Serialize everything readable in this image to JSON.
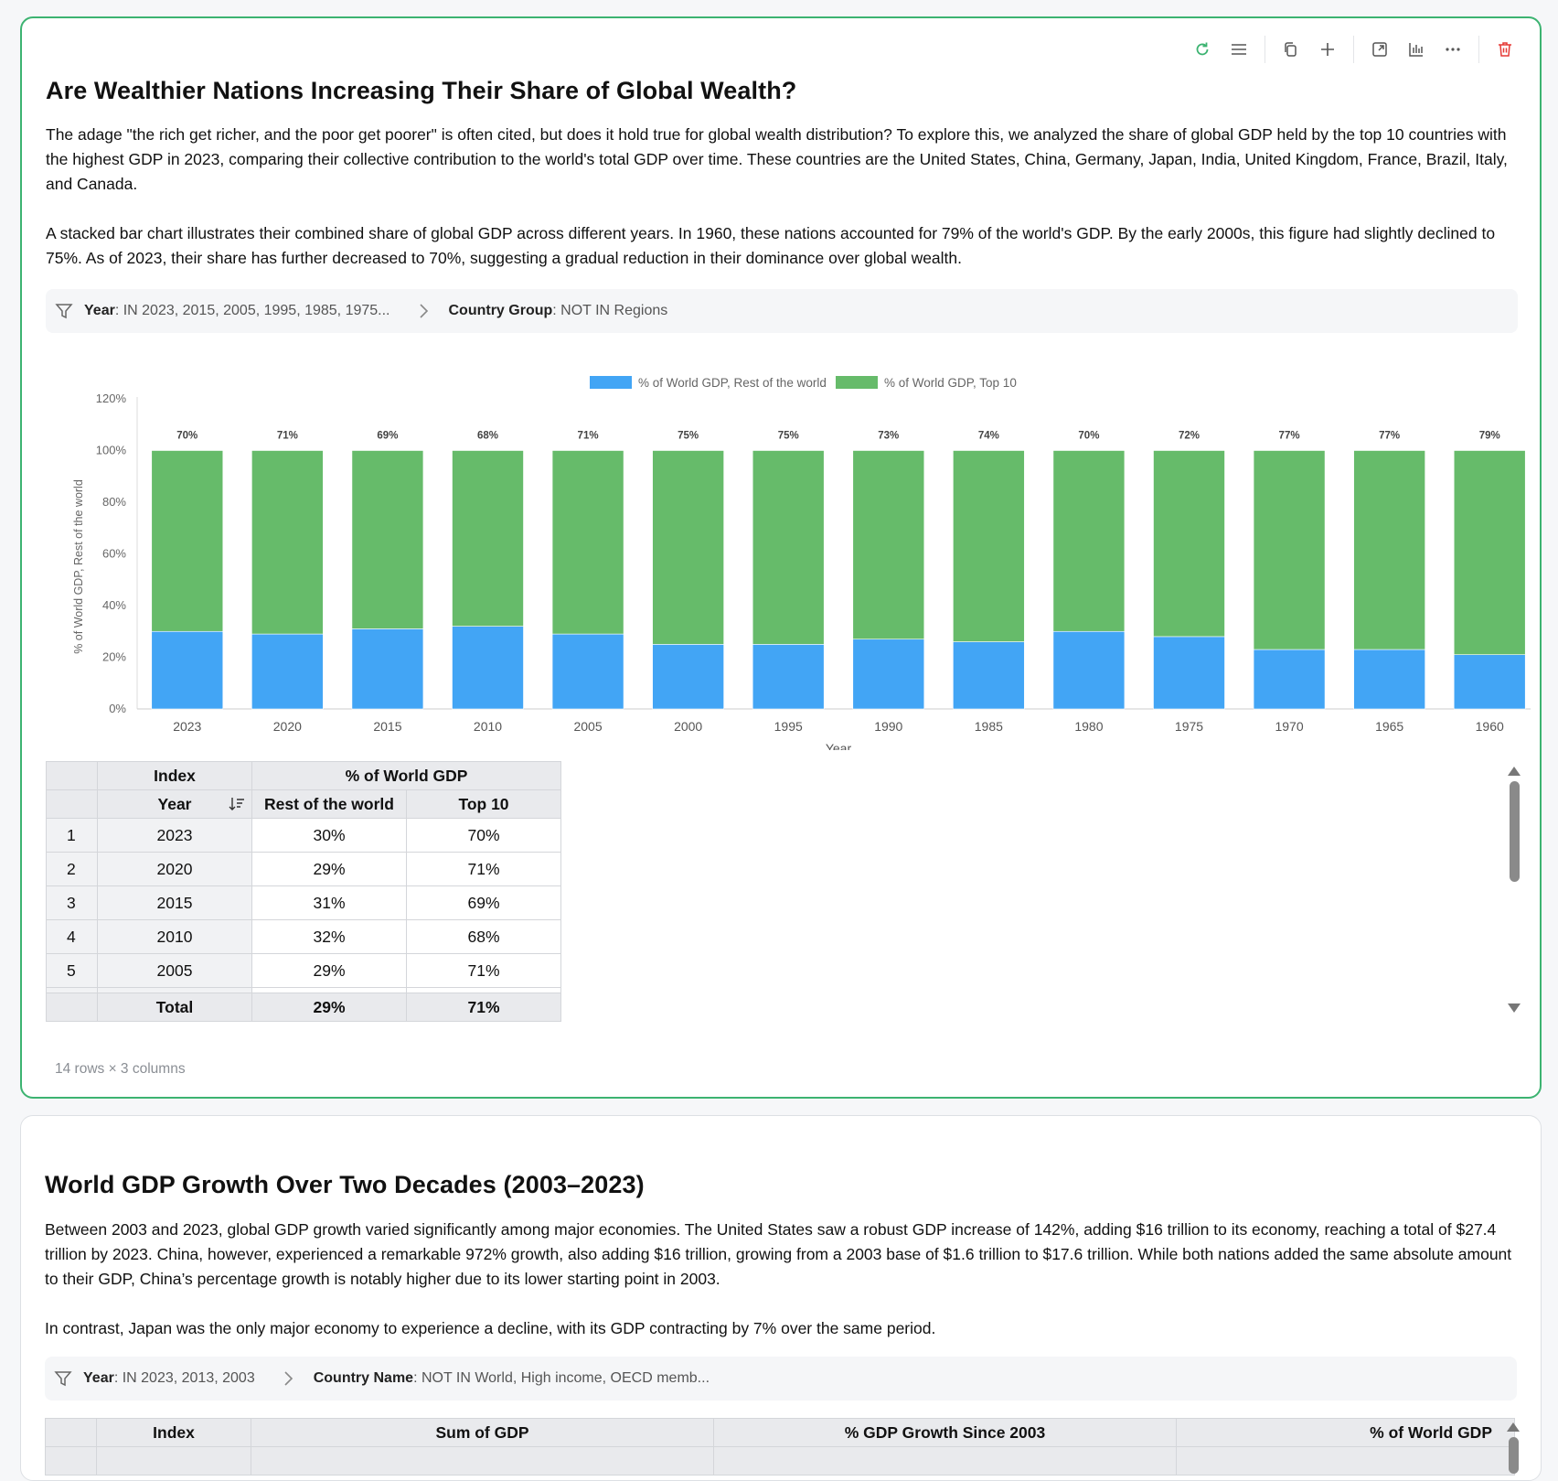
{
  "card1": {
    "title": "Are Wealthier Nations Increasing Their Share of Global Wealth?",
    "para1": "The adage \"the rich get richer, and the poor get poorer\" is often cited, but does it hold true for global wealth distribution? To explore this, we analyzed the share of global GDP held by the top 10 countries with the highest GDP in 2023, comparing their collective contribution to the world's total GDP over time. These countries are the United States, China, Germany, Japan, India, United Kingdom, France, Brazil, Italy, and Canada.",
    "para2": "A stacked bar chart illustrates their combined share of global GDP across different years. In 1960, these nations accounted for 79% of the world's GDP. By the early 2000s, this figure had slightly declined to 75%. As of 2023, their share has further decreased to 70%, suggesting a gradual reduction in their dominance over global wealth.",
    "filters": [
      {
        "key": "Year",
        "value": ": IN 2023, 2015, 2005, 1995, 1985, 1975..."
      },
      {
        "key": "Country Group",
        "value": ": NOT IN Regions"
      }
    ],
    "table": {
      "header_index": "Index",
      "header_group": "% of World GDP",
      "col_year": "Year",
      "col_rest": "Rest of the world",
      "col_top": "Top 10",
      "rows": [
        {
          "n": "1",
          "year": "2023",
          "rest": "30%",
          "top": "70%"
        },
        {
          "n": "2",
          "year": "2020",
          "rest": "29%",
          "top": "71%"
        },
        {
          "n": "3",
          "year": "2015",
          "rest": "31%",
          "top": "69%"
        },
        {
          "n": "4",
          "year": "2010",
          "rest": "32%",
          "top": "68%"
        },
        {
          "n": "5",
          "year": "2005",
          "rest": "29%",
          "top": "71%"
        }
      ],
      "total": {
        "label": "Total",
        "rest": "29%",
        "top": "71%"
      }
    },
    "row_count": "14 rows × 3 columns"
  },
  "chart_data": {
    "type": "bar",
    "stacked": true,
    "categories": [
      "2023",
      "2020",
      "2015",
      "2010",
      "2005",
      "2000",
      "1995",
      "1990",
      "1985",
      "1980",
      "1975",
      "1970",
      "1965",
      "1960"
    ],
    "series": [
      {
        "name": "% of World GDP, Rest of the world",
        "color": "#42a5f5",
        "values": [
          30,
          29,
          31,
          32,
          29,
          25,
          25,
          27,
          26,
          30,
          28,
          23,
          23,
          21
        ],
        "labels": [
          "30%",
          "29%",
          "31%",
          "32%",
          "29%",
          "25%",
          "25%",
          "27%",
          "26%",
          "30%",
          "28%",
          "23%",
          "23%",
          "21%"
        ]
      },
      {
        "name": "% of World GDP, Top 10",
        "color": "#66bb6a",
        "values": [
          70,
          71,
          69,
          68,
          71,
          75,
          75,
          73,
          74,
          70,
          72,
          77,
          77,
          79
        ],
        "labels": [
          "70%",
          "71%",
          "69%",
          "68%",
          "71%",
          "75%",
          "75%",
          "73%",
          "74%",
          "70%",
          "72%",
          "77%",
          "77%",
          "79%"
        ]
      }
    ],
    "xlabel": "Year",
    "ylabel": "% of World GDP, Rest of the world",
    "ylim": [
      0,
      120
    ],
    "yticks": [
      "0%",
      "20%",
      "40%",
      "60%",
      "80%",
      "100%",
      "120%"
    ],
    "legend": "top-center",
    "grid": false
  },
  "card2": {
    "title": "World GDP Growth Over Two Decades (2003–2023)",
    "para1": "Between 2003 and 2023, global GDP growth varied significantly among major economies. The United States saw a robust GDP increase of 142%, adding $16 trillion to its economy, reaching a total of $27.4 trillion by 2023. China, however, experienced a remarkable 972% growth, also adding $16 trillion, growing from a 2003 base of $1.6 trillion to $17.6 trillion. While both nations added the same absolute amount to their GDP, China’s percentage growth is notably higher due to its lower starting point in 2003.",
    "para2": "In contrast, Japan was the only major economy to experience a decline, with its GDP contracting by 7% over the same period.",
    "filters": [
      {
        "key": "Year",
        "value": ": IN 2023, 2013, 2003"
      },
      {
        "key": "Country Name",
        "value": ": NOT IN World, High income, OECD memb..."
      }
    ],
    "table_headers": [
      "Index",
      "Sum of GDP",
      "% GDP Growth Since 2003",
      "% of World GDP"
    ]
  },
  "icons": {
    "toolbar": [
      "refresh-icon",
      "menu-icon",
      "copy-icon",
      "plus-icon",
      "expand-icon",
      "chart-icon",
      "more-icon",
      "trash-icon"
    ],
    "accent": "#3cb371",
    "danger": "#e53935"
  }
}
